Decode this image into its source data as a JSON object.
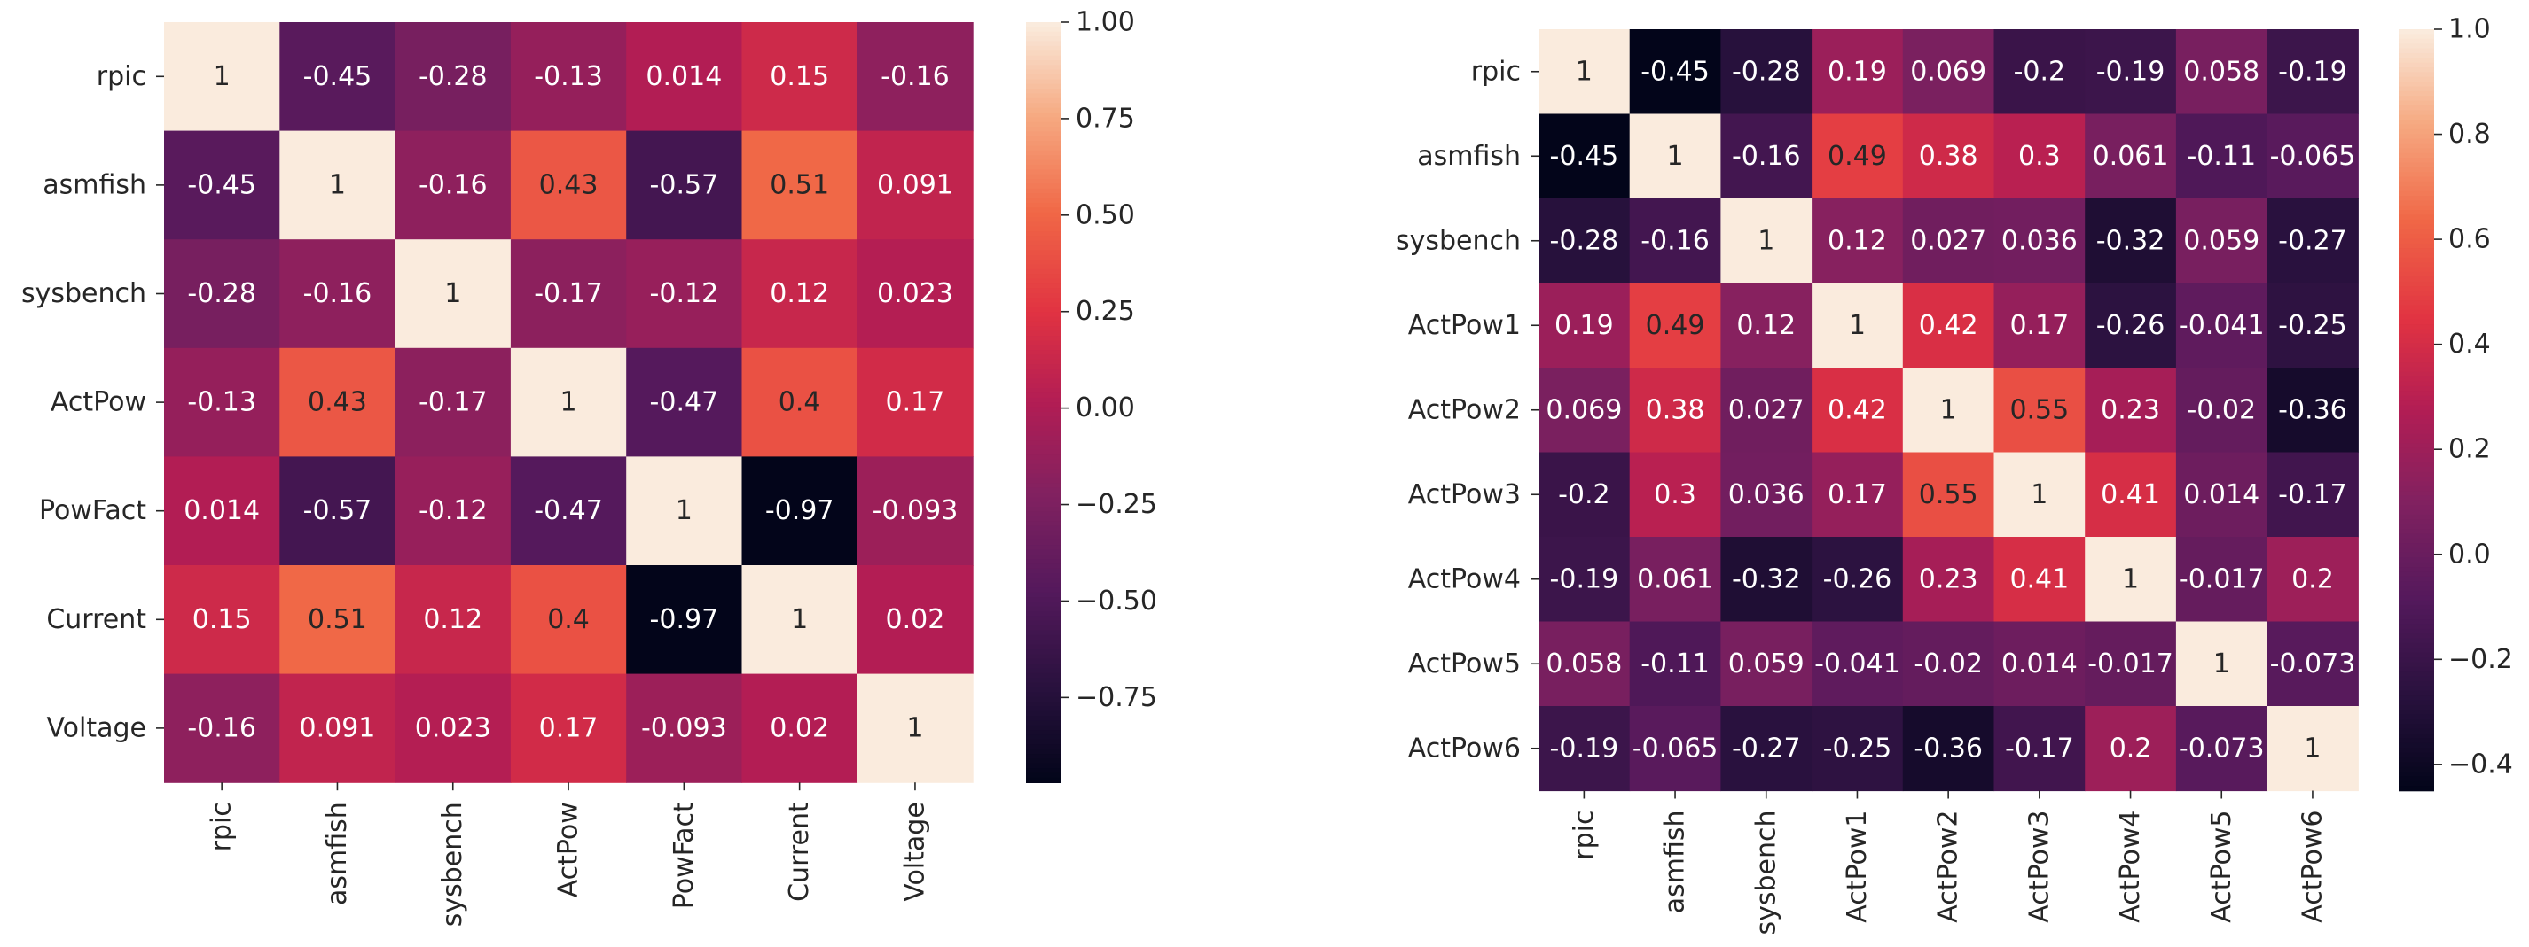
{
  "chart_data": [
    {
      "type": "heatmap",
      "title": "",
      "xlabel": "",
      "ylabel": "",
      "labels": [
        "rpic",
        "asmfish",
        "sysbench",
        "ActPow",
        "PowFact",
        "Current",
        "Voltage"
      ],
      "cells": [
        [
          "1",
          "-0.45",
          "-0.28",
          "-0.13",
          "0.014",
          "0.15",
          "-0.16"
        ],
        [
          "-0.45",
          "1",
          "-0.16",
          "0.43",
          "-0.57",
          "0.51",
          "0.091"
        ],
        [
          "-0.28",
          "-0.16",
          "1",
          "-0.17",
          "-0.12",
          "0.12",
          "0.023"
        ],
        [
          "-0.13",
          "0.43",
          "-0.17",
          "1",
          "-0.47",
          "0.4",
          "0.17"
        ],
        [
          "0.014",
          "-0.57",
          "-0.12",
          "-0.47",
          "1",
          "-0.97",
          "-0.093"
        ],
        [
          "0.15",
          "0.51",
          "0.12",
          "0.4",
          "-0.97",
          "1",
          "0.02"
        ],
        [
          "-0.16",
          "0.091",
          "0.023",
          "0.17",
          "-0.093",
          "0.02",
          "1"
        ]
      ],
      "colorbar": {
        "vmin": -0.97,
        "vmax": 1.0,
        "ticks": [
          1.0,
          0.75,
          0.5,
          0.25,
          0.0,
          -0.25,
          -0.5,
          -0.75
        ],
        "tick_labels": [
          "1.00",
          "0.75",
          "0.50",
          "0.25",
          "0.00",
          "−0.25",
          "−0.50",
          "−0.75"
        ]
      }
    },
    {
      "type": "heatmap",
      "title": "",
      "xlabel": "",
      "ylabel": "",
      "labels": [
        "rpic",
        "asmfish",
        "sysbench",
        "ActPow1",
        "ActPow2",
        "ActPow3",
        "ActPow4",
        "ActPow5",
        "ActPow6"
      ],
      "cells": [
        [
          "1",
          "-0.45",
          "-0.28",
          "0.19",
          "0.069",
          "-0.2",
          "-0.19",
          "0.058",
          "-0.19"
        ],
        [
          "-0.45",
          "1",
          "-0.16",
          "0.49",
          "0.38",
          "0.3",
          "0.061",
          "-0.11",
          "-0.065"
        ],
        [
          "-0.28",
          "-0.16",
          "1",
          "0.12",
          "0.027",
          "0.036",
          "-0.32",
          "0.059",
          "-0.27"
        ],
        [
          "0.19",
          "0.49",
          "0.12",
          "1",
          "0.42",
          "0.17",
          "-0.26",
          "-0.041",
          "-0.25"
        ],
        [
          "0.069",
          "0.38",
          "0.027",
          "0.42",
          "1",
          "0.55",
          "0.23",
          "-0.02",
          "-0.36"
        ],
        [
          "-0.2",
          "0.3",
          "0.036",
          "0.17",
          "0.55",
          "1",
          "0.41",
          "0.014",
          "-0.17"
        ],
        [
          "-0.19",
          "0.061",
          "-0.32",
          "-0.26",
          "0.23",
          "0.41",
          "1",
          "-0.017",
          "0.2"
        ],
        [
          "0.058",
          "-0.11",
          "0.059",
          "-0.041",
          "-0.02",
          "0.014",
          "-0.017",
          "1",
          "-0.073"
        ],
        [
          "-0.19",
          "-0.065",
          "-0.27",
          "-0.25",
          "-0.36",
          "-0.17",
          "0.2",
          "-0.073",
          "1"
        ]
      ],
      "colorbar": {
        "vmin": -0.45,
        "vmax": 1.0,
        "ticks": [
          1.0,
          0.8,
          0.6,
          0.4,
          0.2,
          0.0,
          -0.2,
          -0.4
        ],
        "tick_labels": [
          "1.0",
          "0.8",
          "0.6",
          "0.4",
          "0.2",
          "0.0",
          "−0.2",
          "−0.4"
        ]
      }
    }
  ]
}
